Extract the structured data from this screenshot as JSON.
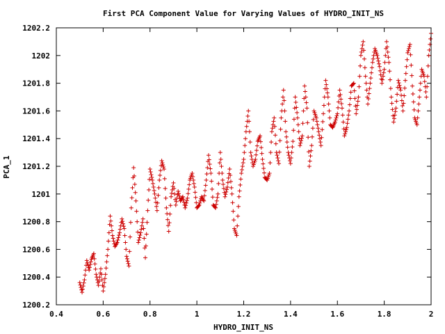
{
  "chart_data": {
    "type": "scatter",
    "title": "First PCA Component Value for Varying Values of HYDRO_INIT_NS",
    "xlabel": "HYDRO_INIT_NS",
    "ylabel": "PCA_1",
    "xlim": [
      0.4,
      2.0
    ],
    "ylim": [
      1200.2,
      1202.2
    ],
    "x_ticks": [
      0.4,
      0.6,
      0.8,
      1.0,
      1.2,
      1.4,
      1.6,
      1.8,
      2.0
    ],
    "x_tick_labels": [
      "0.4",
      "0.6",
      "0.8",
      "1",
      "1.2",
      "1.4",
      "1.6",
      "1.8",
      "2"
    ],
    "y_ticks": [
      1200.2,
      1200.4,
      1200.6,
      1200.8,
      1201.0,
      1201.2,
      1201.4,
      1201.6,
      1201.8,
      1202.0,
      1202.2
    ],
    "y_tick_labels": [
      "1200.2",
      "1200.4",
      "1200.6",
      "1200.8",
      "1201",
      "1201.2",
      "1201.4",
      "1201.6",
      "1201.8",
      "1202",
      "1202.2"
    ],
    "grid": false,
    "legend": "none",
    "marker": "plus",
    "series": [
      {
        "color": "#cc0000",
        "points": [
          [
            0.5,
            1200.36
          ],
          [
            0.51,
            1200.29
          ],
          [
            0.52,
            1200.38
          ],
          [
            0.53,
            1200.52
          ],
          [
            0.54,
            1200.45
          ],
          [
            0.55,
            1200.53
          ],
          [
            0.56,
            1200.57
          ],
          [
            0.57,
            1200.42
          ],
          [
            0.58,
            1200.34
          ],
          [
            0.59,
            1200.46
          ],
          [
            0.6,
            1200.3
          ],
          [
            0.61,
            1200.42
          ],
          [
            0.62,
            1200.6
          ],
          [
            0.63,
            1200.84
          ],
          [
            0.64,
            1200.7
          ],
          [
            0.65,
            1200.62
          ],
          [
            0.66,
            1200.65
          ],
          [
            0.67,
            1200.72
          ],
          [
            0.68,
            1200.82
          ],
          [
            0.69,
            1200.75
          ],
          [
            0.7,
            1200.55
          ],
          [
            0.71,
            1200.48
          ],
          [
            0.72,
            1200.9
          ],
          [
            0.73,
            1201.19
          ],
          [
            0.74,
            1200.95
          ],
          [
            0.75,
            1200.65
          ],
          [
            0.76,
            1200.72
          ],
          [
            0.77,
            1200.82
          ],
          [
            0.78,
            1200.54
          ],
          [
            0.79,
            1200.88
          ],
          [
            0.8,
            1201.18
          ],
          [
            0.81,
            1201.1
          ],
          [
            0.82,
            1201.0
          ],
          [
            0.83,
            1200.88
          ],
          [
            0.84,
            1201.1
          ],
          [
            0.85,
            1201.24
          ],
          [
            0.86,
            1201.18
          ],
          [
            0.87,
            1200.9
          ],
          [
            0.88,
            1200.73
          ],
          [
            0.89,
            1200.98
          ],
          [
            0.9,
            1201.08
          ],
          [
            0.91,
            1200.92
          ],
          [
            0.92,
            1201.02
          ],
          [
            0.93,
            1200.95
          ],
          [
            0.94,
            1200.98
          ],
          [
            0.95,
            1200.9
          ],
          [
            0.96,
            1200.97
          ],
          [
            0.97,
            1201.1
          ],
          [
            0.98,
            1201.15
          ],
          [
            0.99,
            1201.05
          ],
          [
            1.0,
            1200.9
          ],
          [
            1.01,
            1200.92
          ],
          [
            1.02,
            1200.98
          ],
          [
            1.03,
            1200.95
          ],
          [
            1.04,
            1201.1
          ],
          [
            1.05,
            1201.28
          ],
          [
            1.06,
            1201.15
          ],
          [
            1.07,
            1200.92
          ],
          [
            1.08,
            1200.9
          ],
          [
            1.09,
            1201.0
          ],
          [
            1.1,
            1201.3
          ],
          [
            1.11,
            1201.1
          ],
          [
            1.12,
            1200.98
          ],
          [
            1.13,
            1201.05
          ],
          [
            1.14,
            1201.18
          ],
          [
            1.15,
            1201.0
          ],
          [
            1.16,
            1200.75
          ],
          [
            1.17,
            1200.7
          ],
          [
            1.18,
            1200.98
          ],
          [
            1.19,
            1201.15
          ],
          [
            1.2,
            1201.25
          ],
          [
            1.21,
            1201.45
          ],
          [
            1.22,
            1201.6
          ],
          [
            1.23,
            1201.3
          ],
          [
            1.24,
            1201.2
          ],
          [
            1.25,
            1201.25
          ],
          [
            1.26,
            1201.38
          ],
          [
            1.27,
            1201.42
          ],
          [
            1.28,
            1201.25
          ],
          [
            1.29,
            1201.12
          ],
          [
            1.3,
            1201.1
          ],
          [
            1.31,
            1201.15
          ],
          [
            1.32,
            1201.45
          ],
          [
            1.33,
            1201.55
          ],
          [
            1.34,
            1201.3
          ],
          [
            1.35,
            1201.22
          ],
          [
            1.36,
            1201.55
          ],
          [
            1.37,
            1201.75
          ],
          [
            1.38,
            1201.45
          ],
          [
            1.39,
            1201.3
          ],
          [
            1.4,
            1201.22
          ],
          [
            1.41,
            1201.38
          ],
          [
            1.42,
            1201.7
          ],
          [
            1.43,
            1201.55
          ],
          [
            1.44,
            1201.35
          ],
          [
            1.45,
            1201.42
          ],
          [
            1.46,
            1201.78
          ],
          [
            1.47,
            1201.62
          ],
          [
            1.48,
            1201.2
          ],
          [
            1.49,
            1201.35
          ],
          [
            1.5,
            1201.6
          ],
          [
            1.51,
            1201.55
          ],
          [
            1.52,
            1201.45
          ],
          [
            1.53,
            1201.35
          ],
          [
            1.54,
            1201.58
          ],
          [
            1.55,
            1201.82
          ],
          [
            1.56,
            1201.7
          ],
          [
            1.57,
            1201.5
          ],
          [
            1.58,
            1201.48
          ],
          [
            1.59,
            1201.52
          ],
          [
            1.6,
            1201.58
          ],
          [
            1.61,
            1201.75
          ],
          [
            1.62,
            1201.62
          ],
          [
            1.63,
            1201.42
          ],
          [
            1.64,
            1201.48
          ],
          [
            1.65,
            1201.6
          ],
          [
            1.66,
            1201.78
          ],
          [
            1.67,
            1201.8
          ],
          [
            1.68,
            1201.58
          ],
          [
            1.69,
            1201.7
          ],
          [
            1.7,
            1202.0
          ],
          [
            1.71,
            1202.1
          ],
          [
            1.72,
            1201.85
          ],
          [
            1.73,
            1201.65
          ],
          [
            1.74,
            1201.8
          ],
          [
            1.75,
            1201.95
          ],
          [
            1.76,
            1202.05
          ],
          [
            1.77,
            1202.0
          ],
          [
            1.78,
            1201.92
          ],
          [
            1.79,
            1201.8
          ],
          [
            1.8,
            1201.9
          ],
          [
            1.81,
            1202.1
          ],
          [
            1.82,
            1201.95
          ],
          [
            1.83,
            1201.7
          ],
          [
            1.84,
            1201.52
          ],
          [
            1.85,
            1201.62
          ],
          [
            1.86,
            1201.82
          ],
          [
            1.87,
            1201.75
          ],
          [
            1.88,
            1201.6
          ],
          [
            1.89,
            1201.82
          ],
          [
            1.9,
            1202.02
          ],
          [
            1.91,
            1202.08
          ],
          [
            1.92,
            1201.78
          ],
          [
            1.93,
            1201.55
          ],
          [
            1.94,
            1201.5
          ],
          [
            1.95,
            1201.7
          ],
          [
            1.96,
            1201.9
          ],
          [
            1.97,
            1201.85
          ],
          [
            1.98,
            1201.7
          ],
          [
            1.99,
            1202.0
          ],
          [
            2.0,
            1202.16
          ]
        ]
      }
    ]
  }
}
